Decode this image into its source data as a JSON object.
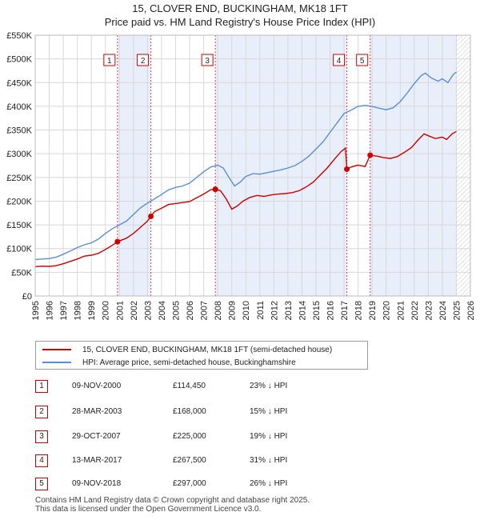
{
  "title_line1": "15, CLOVER END, BUCKINGHAM, MK18 1FT",
  "title_line2": "Price paid vs. HM Land Registry's House Price Index (HPI)",
  "legend": {
    "property": "15, CLOVER END, BUCKINGHAM, MK18 1FT (semi-detached house)",
    "hpi": "HPI: Average price, semi-detached house, Buckinghamshire"
  },
  "colors": {
    "property": "#cc0000",
    "hpi": "#5b8fd4",
    "shade": "#e8eefa",
    "grid": "#d8d8d8",
    "marker_border": "#cc0000"
  },
  "sales": [
    {
      "num": "1",
      "date": "09-NOV-2000",
      "price": "£114,450",
      "hpi_diff": "23% ↓ HPI"
    },
    {
      "num": "2",
      "date": "28-MAR-2003",
      "price": "£168,000",
      "hpi_diff": "15% ↓ HPI"
    },
    {
      "num": "3",
      "date": "29-OCT-2007",
      "price": "£225,000",
      "hpi_diff": "19% ↓ HPI"
    },
    {
      "num": "4",
      "date": "13-MAR-2017",
      "price": "£267,500",
      "hpi_diff": "31% ↓ HPI"
    },
    {
      "num": "5",
      "date": "09-NOV-2018",
      "price": "£297,000",
      "hpi_diff": "26% ↓ HPI"
    }
  ],
  "footer": {
    "line1": "Contains HM Land Registry data © Crown copyright and database right 2025.",
    "line2": "This data is licensed under the Open Government Licence v3.0."
  },
  "chart_data": {
    "type": "line",
    "title": "15, CLOVER END, BUCKINGHAM, MK18 1FT",
    "subtitle": "Price paid vs. HM Land Registry's House Price Index (HPI)",
    "xlabel": "",
    "ylabel": "",
    "xlim": [
      1995,
      2026
    ],
    "ylim": [
      0,
      550000
    ],
    "grid": true,
    "legend_position": "bottom",
    "x_ticks": [
      "1995",
      "1996",
      "1997",
      "1998",
      "1999",
      "2000",
      "2001",
      "2002",
      "2003",
      "2004",
      "2005",
      "2006",
      "2007",
      "2008",
      "2009",
      "2010",
      "2011",
      "2012",
      "2013",
      "2014",
      "2015",
      "2016",
      "2017",
      "2018",
      "2019",
      "2020",
      "2021",
      "2022",
      "2023",
      "2024",
      "2025",
      "2026"
    ],
    "y_ticks": [
      {
        "value": 0,
        "label": "£0"
      },
      {
        "value": 50000,
        "label": "£50K"
      },
      {
        "value": 100000,
        "label": "£100K"
      },
      {
        "value": 150000,
        "label": "£150K"
      },
      {
        "value": 200000,
        "label": "£200K"
      },
      {
        "value": 250000,
        "label": "£250K"
      },
      {
        "value": 300000,
        "label": "£300K"
      },
      {
        "value": 350000,
        "label": "£350K"
      },
      {
        "value": 400000,
        "label": "£400K"
      },
      {
        "value": 450000,
        "label": "£450K"
      },
      {
        "value": 500000,
        "label": "£500K"
      },
      {
        "value": 550000,
        "label": "£550K"
      }
    ],
    "shaded_ranges": [
      [
        2000.86,
        2003.24
      ],
      [
        2007.83,
        2017.2
      ],
      [
        2018.86,
        2025.0
      ]
    ],
    "future_hatch_from": 2025.0,
    "sale_markers": [
      {
        "label": "1",
        "x": 2000.86,
        "y": 114450
      },
      {
        "label": "2",
        "x": 2003.24,
        "y": 168000
      },
      {
        "label": "3",
        "x": 2007.83,
        "y": 225000
      },
      {
        "label": "4",
        "x": 2017.2,
        "y": 267500
      },
      {
        "label": "5",
        "x": 2018.86,
        "y": 297000
      }
    ],
    "series": [
      {
        "name": "15, CLOVER END, BUCKINGHAM, MK18 1FT (semi-detached house)",
        "color": "#cc0000",
        "points": [
          [
            1995.0,
            62000
          ],
          [
            1995.5,
            63000
          ],
          [
            1996.0,
            62500
          ],
          [
            1996.5,
            64000
          ],
          [
            1997.0,
            68000
          ],
          [
            1997.5,
            73000
          ],
          [
            1998.0,
            78000
          ],
          [
            1998.5,
            84000
          ],
          [
            1999.0,
            86000
          ],
          [
            1999.5,
            90000
          ],
          [
            2000.0,
            98000
          ],
          [
            2000.5,
            107000
          ],
          [
            2000.86,
            114450
          ],
          [
            2001.0,
            116000
          ],
          [
            2001.5,
            122000
          ],
          [
            2002.0,
            132000
          ],
          [
            2002.5,
            145000
          ],
          [
            2003.0,
            158000
          ],
          [
            2003.24,
            168000
          ],
          [
            2003.5,
            178000
          ],
          [
            2004.0,
            185000
          ],
          [
            2004.5,
            193000
          ],
          [
            2005.0,
            195000
          ],
          [
            2005.5,
            197000
          ],
          [
            2006.0,
            199000
          ],
          [
            2006.5,
            207000
          ],
          [
            2007.0,
            215000
          ],
          [
            2007.5,
            224000
          ],
          [
            2007.83,
            225000
          ],
          [
            2008.2,
            222000
          ],
          [
            2008.6,
            205000
          ],
          [
            2009.0,
            183000
          ],
          [
            2009.4,
            190000
          ],
          [
            2009.8,
            200000
          ],
          [
            2010.3,
            208000
          ],
          [
            2010.8,
            212000
          ],
          [
            2011.3,
            210000
          ],
          [
            2011.8,
            213000
          ],
          [
            2012.3,
            215000
          ],
          [
            2012.8,
            216000
          ],
          [
            2013.3,
            218000
          ],
          [
            2013.8,
            222000
          ],
          [
            2014.3,
            230000
          ],
          [
            2014.8,
            240000
          ],
          [
            2015.3,
            255000
          ],
          [
            2015.8,
            270000
          ],
          [
            2016.3,
            288000
          ],
          [
            2016.8,
            305000
          ],
          [
            2017.1,
            312000
          ],
          [
            2017.2,
            267500
          ],
          [
            2017.5,
            272000
          ],
          [
            2018.0,
            276000
          ],
          [
            2018.5,
            273000
          ],
          [
            2018.86,
            297000
          ],
          [
            2019.3,
            295000
          ],
          [
            2019.8,
            292000
          ],
          [
            2020.3,
            290000
          ],
          [
            2020.8,
            294000
          ],
          [
            2021.3,
            303000
          ],
          [
            2021.8,
            313000
          ],
          [
            2022.3,
            330000
          ],
          [
            2022.7,
            342000
          ],
          [
            2023.0,
            338000
          ],
          [
            2023.5,
            332000
          ],
          [
            2024.0,
            335000
          ],
          [
            2024.3,
            330000
          ],
          [
            2024.7,
            342000
          ],
          [
            2025.0,
            347000
          ]
        ]
      },
      {
        "name": "HPI: Average price, semi-detached house, Buckinghamshire",
        "color": "#5b8fd4",
        "points": [
          [
            1995.0,
            77000
          ],
          [
            1995.5,
            78000
          ],
          [
            1996.0,
            79000
          ],
          [
            1996.5,
            82000
          ],
          [
            1997.0,
            88000
          ],
          [
            1997.5,
            95000
          ],
          [
            1998.0,
            102000
          ],
          [
            1998.5,
            108000
          ],
          [
            1999.0,
            112000
          ],
          [
            1999.5,
            120000
          ],
          [
            2000.0,
            132000
          ],
          [
            2000.5,
            142000
          ],
          [
            2001.0,
            150000
          ],
          [
            2001.5,
            158000
          ],
          [
            2002.0,
            172000
          ],
          [
            2002.5,
            186000
          ],
          [
            2003.0,
            196000
          ],
          [
            2003.5,
            205000
          ],
          [
            2004.0,
            214000
          ],
          [
            2004.5,
            224000
          ],
          [
            2005.0,
            229000
          ],
          [
            2005.5,
            232000
          ],
          [
            2006.0,
            238000
          ],
          [
            2006.5,
            250000
          ],
          [
            2007.0,
            262000
          ],
          [
            2007.5,
            272000
          ],
          [
            2008.0,
            276000
          ],
          [
            2008.4,
            270000
          ],
          [
            2008.8,
            250000
          ],
          [
            2009.2,
            232000
          ],
          [
            2009.6,
            240000
          ],
          [
            2010.0,
            252000
          ],
          [
            2010.5,
            258000
          ],
          [
            2011.0,
            257000
          ],
          [
            2011.5,
            260000
          ],
          [
            2012.0,
            263000
          ],
          [
            2012.5,
            266000
          ],
          [
            2013.0,
            270000
          ],
          [
            2013.5,
            275000
          ],
          [
            2014.0,
            284000
          ],
          [
            2014.5,
            295000
          ],
          [
            2015.0,
            310000
          ],
          [
            2015.5,
            325000
          ],
          [
            2016.0,
            345000
          ],
          [
            2016.5,
            365000
          ],
          [
            2017.0,
            385000
          ],
          [
            2017.5,
            392000
          ],
          [
            2018.0,
            400000
          ],
          [
            2018.5,
            402000
          ],
          [
            2019.0,
            400000
          ],
          [
            2019.5,
            396000
          ],
          [
            2020.0,
            393000
          ],
          [
            2020.5,
            397000
          ],
          [
            2021.0,
            410000
          ],
          [
            2021.5,
            428000
          ],
          [
            2022.0,
            448000
          ],
          [
            2022.5,
            465000
          ],
          [
            2022.8,
            470000
          ],
          [
            2023.2,
            460000
          ],
          [
            2023.7,
            453000
          ],
          [
            2024.0,
            458000
          ],
          [
            2024.4,
            450000
          ],
          [
            2024.8,
            468000
          ],
          [
            2025.0,
            472000
          ]
        ]
      }
    ]
  }
}
